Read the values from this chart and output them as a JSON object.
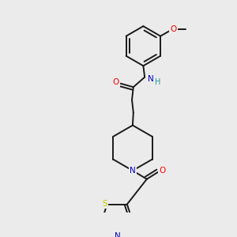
{
  "background_color": "#ebebeb",
  "bond_color": "#1a1a1a",
  "figsize": [
    3.0,
    3.0
  ],
  "dpi": 100,
  "colors": {
    "O": "#ff0000",
    "N": "#0000cc",
    "H": "#1a9999",
    "S": "#cccc00",
    "C": "#1a1a1a"
  }
}
